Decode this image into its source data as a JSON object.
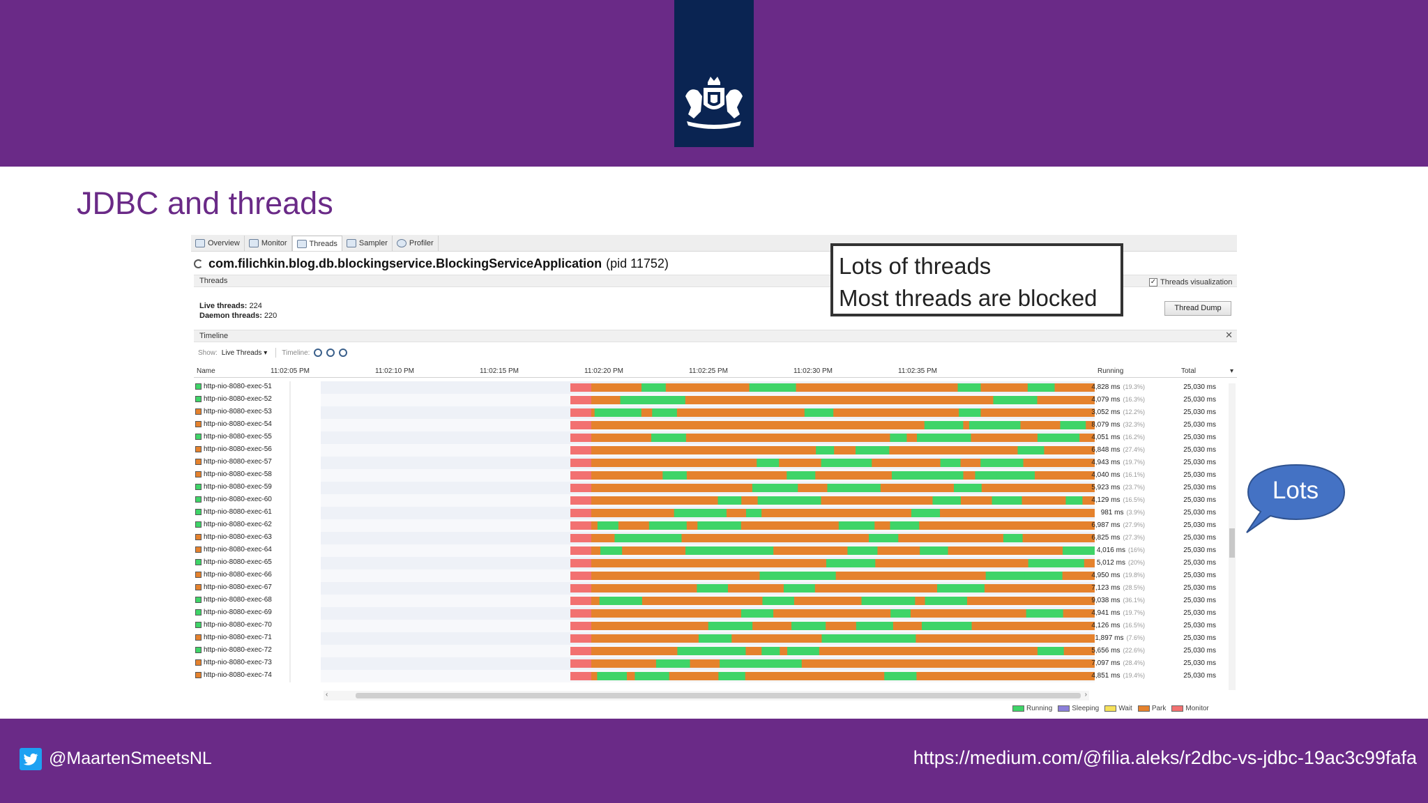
{
  "slide": {
    "title": "JDBC and threads",
    "twitter_handle": "@MaartenSmeetsNL",
    "source_url": "https://medium.com/@filia.aleks/r2dbc-vs-jdbc-19ac3c99fafa",
    "colors": {
      "bar": "#6a2a87",
      "emblem_bg": "#0a2452",
      "title": "#6a2a87"
    }
  },
  "callout": {
    "line1": "Lots of threads",
    "line2": "Most threads are blocked"
  },
  "bubble": {
    "text": "Lots",
    "color": "#4472c4"
  },
  "app": {
    "tabs": [
      {
        "label": "Overview",
        "icon": "overview-icon"
      },
      {
        "label": "Monitor",
        "icon": "monitor-icon"
      },
      {
        "label": "Threads",
        "icon": "threads-icon"
      },
      {
        "label": "Sampler",
        "icon": "sampler-icon"
      },
      {
        "label": "Profiler",
        "icon": "profiler-icon"
      }
    ],
    "title": "com.filichkin.blog.db.blockingservice.BlockingServiceApplication",
    "pid": "(pid 11752)",
    "threads_section": "Threads",
    "live_threads_label": "Live threads:",
    "live_threads": "224",
    "daemon_threads_label": "Daemon threads:",
    "daemon_threads": "220",
    "threads_visualization": "Threads visualization",
    "thread_dump": "Thread Dump",
    "timeline_section": "Timeline",
    "show_label": "Show:",
    "show_value": "Live Threads",
    "timeline_label": "Timeline:",
    "col_name": "Name",
    "col_running": "Running",
    "col_total": "Total",
    "time_ticks": [
      "11:02:05 PM",
      "11:02:10 PM",
      "11:02:15 PM",
      "11:02:20 PM",
      "11:02:25 PM",
      "11:02:30 PM",
      "11:02:35 PM"
    ],
    "legend": [
      {
        "label": "Running",
        "color": "#3fd468"
      },
      {
        "label": "Sleeping",
        "color": "#8b7fd9"
      },
      {
        "label": "Wait",
        "color": "#f6e15a"
      },
      {
        "label": "Park",
        "color": "#e5822d"
      },
      {
        "label": "Monitor",
        "color": "#f27171"
      }
    ],
    "state_colors": {
      "R": "#3fd468",
      "P": "#e5822d",
      "M": "#f27171"
    },
    "threads": [
      {
        "name": "http-nio-8080-exec-51",
        "state": "R",
        "running": "4,828 ms",
        "pct": "(19.3%)",
        "total": "25,030 ms"
      },
      {
        "name": "http-nio-8080-exec-52",
        "state": "R",
        "running": "4,079 ms",
        "pct": "(16.3%)",
        "total": "25,030 ms"
      },
      {
        "name": "http-nio-8080-exec-53",
        "state": "P",
        "running": "3,052 ms",
        "pct": "(12.2%)",
        "total": "25,030 ms"
      },
      {
        "name": "http-nio-8080-exec-54",
        "state": "P",
        "running": "8,079 ms",
        "pct": "(32.3%)",
        "total": "25,030 ms"
      },
      {
        "name": "http-nio-8080-exec-55",
        "state": "R",
        "running": "4,051 ms",
        "pct": "(16.2%)",
        "total": "25,030 ms"
      },
      {
        "name": "http-nio-8080-exec-56",
        "state": "P",
        "running": "6,848 ms",
        "pct": "(27.4%)",
        "total": "25,030 ms"
      },
      {
        "name": "http-nio-8080-exec-57",
        "state": "P",
        "running": "4,943 ms",
        "pct": "(19.7%)",
        "total": "25,030 ms"
      },
      {
        "name": "http-nio-8080-exec-58",
        "state": "P",
        "running": "4,040 ms",
        "pct": "(16.1%)",
        "total": "25,030 ms"
      },
      {
        "name": "http-nio-8080-exec-59",
        "state": "R",
        "running": "5,923 ms",
        "pct": "(23.7%)",
        "total": "25,030 ms"
      },
      {
        "name": "http-nio-8080-exec-60",
        "state": "R",
        "running": "4,129 ms",
        "pct": "(16.5%)",
        "total": "25,030 ms"
      },
      {
        "name": "http-nio-8080-exec-61",
        "state": "R",
        "running": "981 ms",
        "pct": "(3.9%)",
        "total": "25,030 ms"
      },
      {
        "name": "http-nio-8080-exec-62",
        "state": "R",
        "running": "6,987 ms",
        "pct": "(27.9%)",
        "total": "25,030 ms"
      },
      {
        "name": "http-nio-8080-exec-63",
        "state": "P",
        "running": "6,825 ms",
        "pct": "(27.3%)",
        "total": "25,030 ms"
      },
      {
        "name": "http-nio-8080-exec-64",
        "state": "P",
        "running": "4,016 ms",
        "pct": "(16%)",
        "total": "25,030 ms"
      },
      {
        "name": "http-nio-8080-exec-65",
        "state": "R",
        "running": "5,012 ms",
        "pct": "(20%)",
        "total": "25,030 ms"
      },
      {
        "name": "http-nio-8080-exec-66",
        "state": "P",
        "running": "4,950 ms",
        "pct": "(19.8%)",
        "total": "25,030 ms"
      },
      {
        "name": "http-nio-8080-exec-67",
        "state": "P",
        "running": "7,123 ms",
        "pct": "(28.5%)",
        "total": "25,030 ms"
      },
      {
        "name": "http-nio-8080-exec-68",
        "state": "R",
        "running": "9,038 ms",
        "pct": "(36.1%)",
        "total": "25,030 ms"
      },
      {
        "name": "http-nio-8080-exec-69",
        "state": "R",
        "running": "4,941 ms",
        "pct": "(19.7%)",
        "total": "25,030 ms"
      },
      {
        "name": "http-nio-8080-exec-70",
        "state": "R",
        "running": "4,126 ms",
        "pct": "(16.5%)",
        "total": "25,030 ms"
      },
      {
        "name": "http-nio-8080-exec-71",
        "state": "P",
        "running": "1,897 ms",
        "pct": "(7.6%)",
        "total": "25,030 ms"
      },
      {
        "name": "http-nio-8080-exec-72",
        "state": "R",
        "running": "5,656 ms",
        "pct": "(22.6%)",
        "total": "25,030 ms"
      },
      {
        "name": "http-nio-8080-exec-73",
        "state": "P",
        "running": "7,097 ms",
        "pct": "(28.4%)",
        "total": "25,030 ms"
      },
      {
        "name": "http-nio-8080-exec-74",
        "state": "P",
        "running": "4,851 ms",
        "pct": "(19.4%)",
        "total": "25,030 ms"
      }
    ]
  }
}
